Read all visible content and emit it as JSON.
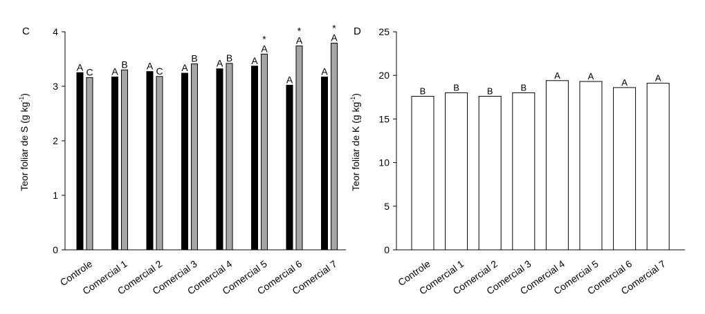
{
  "chart_data": [
    {
      "type": "bar",
      "panel_label": "C",
      "ylabel_main": "Teor foliar de S (g kg",
      "ylabel_sup": "-1",
      "ylabel_close": ")",
      "xlabel": "",
      "ylim": [
        0,
        4
      ],
      "yticks": [
        "0",
        "1",
        "2",
        "3",
        "4"
      ],
      "grid": false,
      "categories": [
        "Controle",
        "Comercial 1",
        "Comercial 2",
        "Comercial 3",
        "Comercial 4",
        "Comercial 5",
        "Comercial 6",
        "Comercial 7"
      ],
      "series": [
        {
          "color": "#000000",
          "values": [
            3.25,
            3.17,
            3.27,
            3.24,
            3.32,
            3.37,
            3.02,
            3.17
          ],
          "letters": [
            "A",
            "A",
            "A",
            "A",
            "A",
            "A",
            "A",
            "A"
          ],
          "stars": [
            "",
            "",
            "",
            "",
            "",
            "",
            "",
            ""
          ]
        },
        {
          "color": "#a6a6a6",
          "values": [
            3.16,
            3.3,
            3.18,
            3.41,
            3.42,
            3.59,
            3.74,
            3.79
          ],
          "letters": [
            "C",
            "B",
            "C",
            "B",
            "B",
            "A",
            "A",
            "A"
          ],
          "stars": [
            "",
            "",
            "",
            "",
            "",
            "*",
            "*",
            "*"
          ]
        }
      ]
    },
    {
      "type": "bar",
      "panel_label": "D",
      "ylabel_main": "Teor foliar de K (g kg",
      "ylabel_sup": "-1",
      "ylabel_close": ")",
      "xlabel": "",
      "ylim": [
        0,
        25
      ],
      "yticks": [
        "0",
        "5",
        "10",
        "15",
        "20",
        "25"
      ],
      "grid": false,
      "categories": [
        "Controle",
        "Comercial 1",
        "Comercial 2",
        "Comercial 3",
        "Comercial 4",
        "Comercial 5",
        "Comercial 6",
        "Comercial 7"
      ],
      "series": [
        {
          "color": "#ffffff",
          "values": [
            17.6,
            18.0,
            17.6,
            18.0,
            19.4,
            19.3,
            18.6,
            19.1
          ],
          "letters": [
            "B",
            "B",
            "B",
            "B",
            "A",
            "A",
            "A",
            "A"
          ],
          "stars": [
            "",
            "",
            "",
            "",
            "",
            "",
            "",
            ""
          ]
        }
      ]
    }
  ]
}
